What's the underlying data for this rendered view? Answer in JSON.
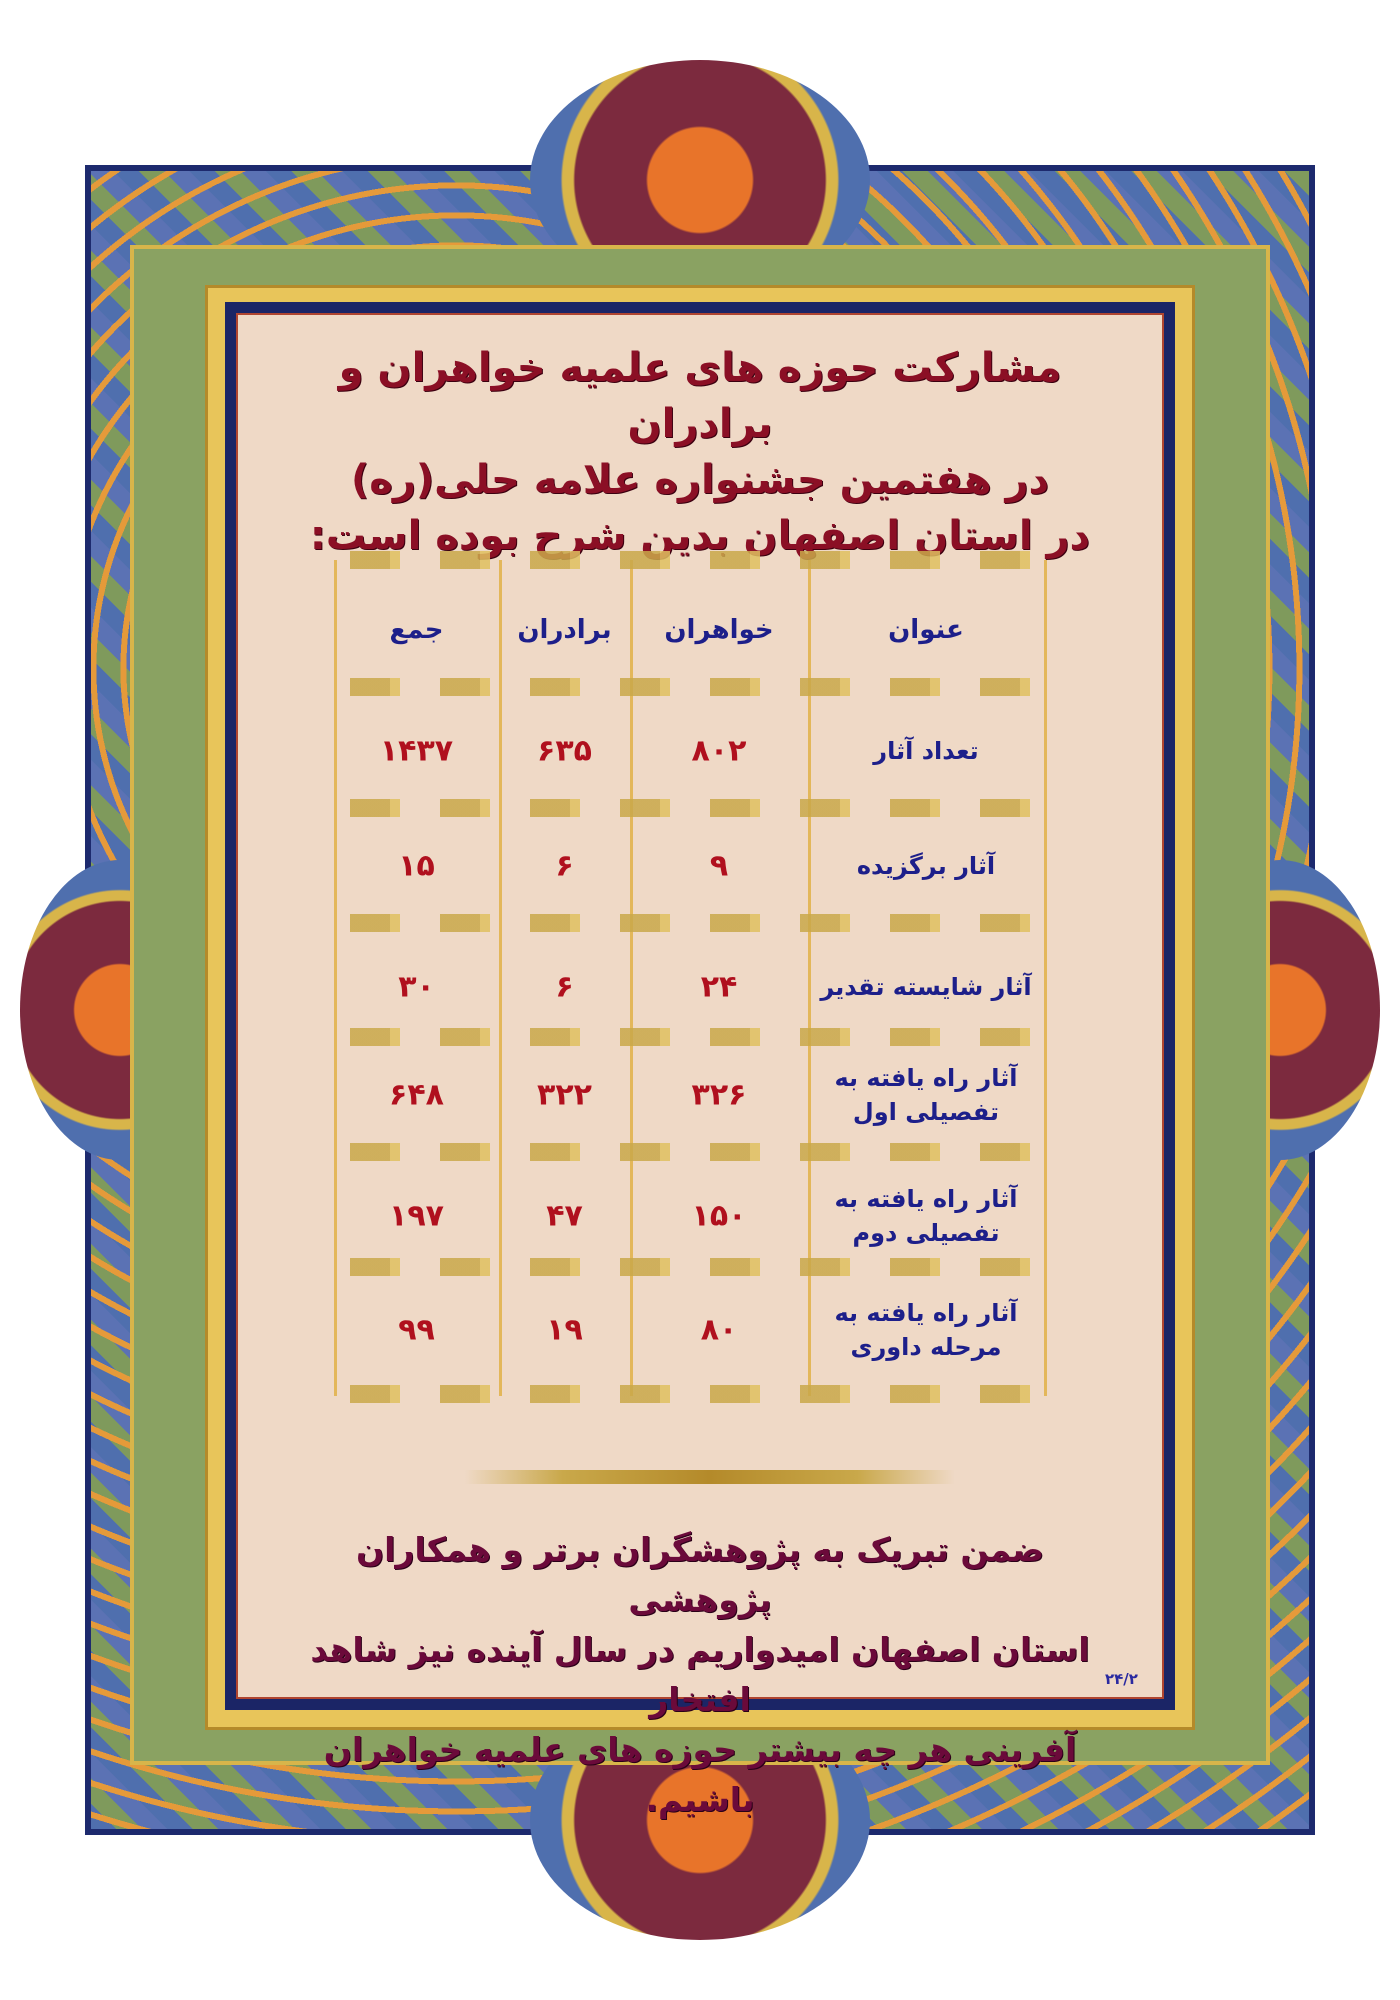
{
  "title": [
    "مشارکت حوزه های علمیه خواهران و برادران",
    "در هفتمین جشنواره علامه حلی(ره)",
    "در استان اصفهان بدین شرح بوده است:"
  ],
  "table": {
    "headers": [
      "عنوان",
      "خواهران",
      "برادران",
      "جمع"
    ],
    "rows": [
      {
        "label": "تعداد آثار",
        "sisters": "۸۰۲",
        "brothers": "۶۳۵",
        "total": "۱۴۳۷"
      },
      {
        "label": "آثار برگزیده",
        "sisters": "۹",
        "brothers": "۶",
        "total": "۱۵"
      },
      {
        "label": "آثار شایسته تقدیر",
        "sisters": "۲۴",
        "brothers": "۶",
        "total": "۳۰"
      },
      {
        "label": "آثار راه یافته به تفصیلی اول",
        "sisters": "۳۲۶",
        "brothers": "۳۲۲",
        "total": "۶۴۸"
      },
      {
        "label": "آثار راه یافته به تفصیلی دوم",
        "sisters": "۱۵۰",
        "brothers": "۴۷",
        "total": "۱۹۷"
      },
      {
        "label": "آثار راه یافته به مرحله داوری",
        "sisters": "۸۰",
        "brothers": "۱۹",
        "total": "۹۹"
      }
    ]
  },
  "footer": [
    "ضمن تبریک به پژوهشگران برتر و همکاران پژوهشی",
    "استان اصفهان امیدواریم در سال آینده نیز شاهد افتخار",
    "آفرینی هر چه بیشتر حوزه های علمیه خواهران  باشیم."
  ],
  "page_code": "۲۴/۲",
  "colors": {
    "title": "#8b0f25",
    "header": "#1d1f8a",
    "numbers": "#b0101e",
    "parchment": "#efd9c6",
    "frame": "#1b2566"
  }
}
